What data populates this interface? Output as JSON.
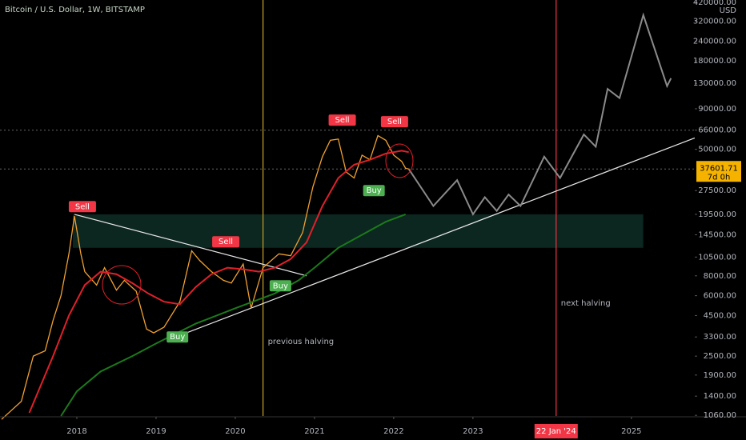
{
  "chart_data": {
    "type": "line",
    "title": "Bitcoin / U.S. Dollar, 1W, BITSTAMP",
    "y_unit": "USD",
    "log_scale": true,
    "grid": false,
    "xlim": [
      2017.03,
      2025.8
    ],
    "xticks": [
      2018,
      2019,
      2020,
      2021,
      2022,
      2023,
      2025
    ],
    "ylim": [
      1050,
      435000
    ],
    "yticks": [
      {
        "value": 420000,
        "label": "420000.00"
      },
      {
        "value": 320000,
        "label": "320000.00"
      },
      {
        "value": 240000,
        "label": "240000.00"
      },
      {
        "value": 180000,
        "label": "180000.00"
      },
      {
        "value": 130000,
        "label": "130000.00"
      },
      {
        "value": 90000,
        "label": "90000.00"
      },
      {
        "value": 66000,
        "label": "66000.00"
      },
      {
        "value": 50000,
        "label": "50000.00"
      },
      {
        "value": 27500,
        "label": "27500.00"
      },
      {
        "value": 19500,
        "label": "19500.00"
      },
      {
        "value": 14500,
        "label": "14500.00"
      },
      {
        "value": 10500,
        "label": "10500.00"
      },
      {
        "value": 8000,
        "label": "8000.00"
      },
      {
        "value": 6000,
        "label": "6000.00"
      },
      {
        "value": 4500,
        "label": "4500.00"
      },
      {
        "value": 3300,
        "label": "3300.00"
      },
      {
        "value": 2500,
        "label": "2500.00"
      },
      {
        "value": 1900,
        "label": "1900.00"
      },
      {
        "value": 1400,
        "label": "1400.00"
      },
      {
        "value": 1060,
        "label": "1060.00"
      }
    ],
    "series": [
      {
        "color": "#f0a030",
        "x": [
          2017.05,
          2017.3,
          2017.45,
          2017.6,
          2017.7,
          2017.8,
          2017.9,
          2017.97,
          2018.05,
          2018.1,
          2018.25,
          2018.35,
          2018.5,
          2018.6,
          2018.75,
          2018.88,
          2018.97,
          2019.1,
          2019.3,
          2019.45,
          2019.55,
          2019.7,
          2019.85,
          2019.95,
          2020.1,
          2020.2,
          2020.35,
          2020.55,
          2020.7,
          2020.85,
          2020.98,
          2021.1,
          2021.2,
          2021.3,
          2021.4,
          2021.5,
          2021.6,
          2021.7,
          2021.8,
          2021.9,
          2022.0,
          2022.1,
          2022.15,
          2022.19
        ],
        "values": [
          1000,
          1300,
          2500,
          2700,
          4200,
          6000,
          11000,
          19000,
          11000,
          8500,
          7000,
          9000,
          6500,
          7500,
          6400,
          3700,
          3500,
          3800,
          5500,
          11500,
          10000,
          8500,
          7500,
          7200,
          9500,
          5000,
          9000,
          11000,
          10700,
          15000,
          29000,
          45000,
          57000,
          58000,
          36000,
          33000,
          46000,
          43000,
          61000,
          57000,
          46000,
          42000,
          38000,
          37601.71
        ]
      },
      {
        "color": "#e0202a",
        "x": [
          2017.4,
          2017.7,
          2017.9,
          2018.1,
          2018.3,
          2018.5,
          2018.7,
          2018.9,
          2019.1,
          2019.3,
          2019.5,
          2019.7,
          2019.9,
          2020.1,
          2020.3,
          2020.5,
          2020.7,
          2020.9,
          2021.1,
          2021.3,
          2021.5,
          2021.7,
          2021.9,
          2022.1,
          2022.19
        ],
        "values": [
          1100,
          2500,
          4500,
          7000,
          8500,
          8200,
          7200,
          6200,
          5500,
          5300,
          6800,
          8200,
          9000,
          8800,
          8500,
          9000,
          10200,
          13000,
          22000,
          33000,
          40000,
          43000,
          47000,
          49000,
          48000
        ]
      },
      {
        "color": "#1b7a1b",
        "x": [
          2017.8,
          2018.0,
          2018.3,
          2018.7,
          2019.0,
          2019.5,
          2020.0,
          2020.5,
          2020.8,
          2021.0,
          2021.3,
          2021.6,
          2021.9,
          2022.15
        ],
        "values": [
          1050,
          1500,
          2000,
          2500,
          3000,
          4000,
          5000,
          6200,
          7500,
          9000,
          12000,
          14500,
          17500,
          19500
        ]
      },
      {
        "color": "#8a8a8a",
        "x": [
          2022.19,
          2022.5,
          2022.8,
          2023.0,
          2023.15,
          2023.3,
          2023.45,
          2023.6,
          2023.9,
          2024.1,
          2024.4,
          2024.55,
          2024.7,
          2024.85,
          2025.15,
          2025.45,
          2025.5
        ],
        "values": [
          37601.71,
          22000,
          32000,
          19500,
          25000,
          20500,
          26000,
          22000,
          45000,
          33000,
          62000,
          52000,
          120000,
          105000,
          350000,
          125000,
          140000
        ]
      }
    ],
    "trendlines": [
      {
        "color": "#e8e8e8",
        "x": [
          2017.97,
          2020.9
        ],
        "values": [
          19500,
          8000
        ]
      },
      {
        "color": "#e8e8e8",
        "x": [
          2019.25,
          2025.8
        ],
        "values": [
          3300,
          59000
        ]
      }
    ],
    "zone": {
      "x": [
        2017.95,
        2025.15
      ],
      "values": [
        12000,
        19500
      ],
      "color": "#0d2a24"
    },
    "hlines": [
      66000,
      37601.71
    ],
    "countdown": "7d 0h",
    "vlines": [
      {
        "x": 2020.35,
        "color": "#c9a227",
        "label": "previous halving"
      },
      {
        "x": 2024.05,
        "color": "#f23645",
        "label": "next halving",
        "axis_label": "22 Jan '24"
      }
    ],
    "signals": [
      {
        "label": "Sell",
        "x": 2018.07,
        "value": 21800,
        "color": "#f23645"
      },
      {
        "label": "Sell",
        "x": 2019.88,
        "value": 13100,
        "color": "#f23645"
      },
      {
        "label": "Sell",
        "x": 2021.35,
        "value": 76400,
        "color": "#f23645"
      },
      {
        "label": "Sell",
        "x": 2022.01,
        "value": 74600,
        "color": "#f23645"
      },
      {
        "label": "Buy",
        "x": 2019.27,
        "value": 3300,
        "color": "#4caf50"
      },
      {
        "label": "Buy",
        "x": 2020.57,
        "value": 6920,
        "color": "#4caf50"
      },
      {
        "label": "Buy",
        "x": 2021.75,
        "value": 27500,
        "color": "#4caf50"
      }
    ]
  }
}
